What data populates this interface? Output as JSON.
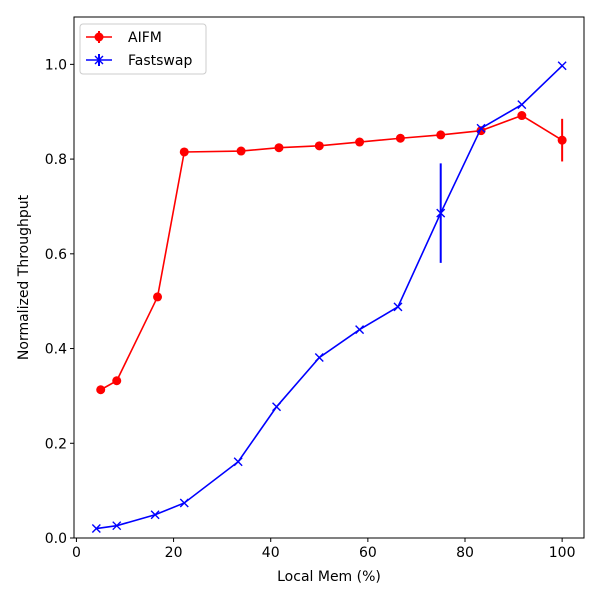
{
  "chart_data": {
    "type": "line",
    "title": "",
    "xlabel": "Local Mem (%)",
    "ylabel": "Normalized Throughput",
    "xlim": [
      -0.5,
      104.5
    ],
    "ylim": [
      0.0,
      1.1
    ],
    "xticks": [
      0,
      20,
      40,
      60,
      80,
      100
    ],
    "yticks": [
      0.0,
      0.2,
      0.4,
      0.6,
      0.8,
      1.0
    ],
    "xtick_labels": [
      "0",
      "20",
      "40",
      "60",
      "80",
      "100"
    ],
    "ytick_labels": [
      "0.0",
      "0.2",
      "0.4",
      "0.6",
      "0.8",
      "1.0"
    ],
    "grid": false,
    "legend_position": "top-left",
    "series": [
      {
        "name": "AIFM",
        "color": "#ff0000",
        "marker": "circle",
        "x": [
          5,
          8.3,
          16.7,
          22.2,
          33.9,
          41.7,
          50,
          58.3,
          66.7,
          75,
          83.3,
          91.7,
          100
        ],
        "y": [
          0.313,
          0.332,
          0.509,
          0.815,
          0.817,
          0.824,
          0.828,
          0.836,
          0.844,
          0.851,
          0.86,
          0.892,
          0.84
        ],
        "yerr": [
          0,
          0,
          0.008,
          0,
          0,
          0,
          0,
          0,
          0,
          0,
          0,
          0,
          0.045
        ]
      },
      {
        "name": "Fastswap",
        "color": "#0000ff",
        "marker": "x",
        "x": [
          4.1,
          8.3,
          16.2,
          22.2,
          33.3,
          41.2,
          50,
          58.3,
          66.2,
          75,
          83.3,
          91.7,
          100
        ],
        "y": [
          0.02,
          0.026,
          0.049,
          0.074,
          0.161,
          0.277,
          0.381,
          0.44,
          0.488,
          0.686,
          0.865,
          0.915,
          0.997
        ],
        "yerr": [
          0,
          0,
          0,
          0,
          0,
          0,
          0,
          0,
          0,
          0.105,
          0,
          0,
          0
        ]
      }
    ]
  }
}
